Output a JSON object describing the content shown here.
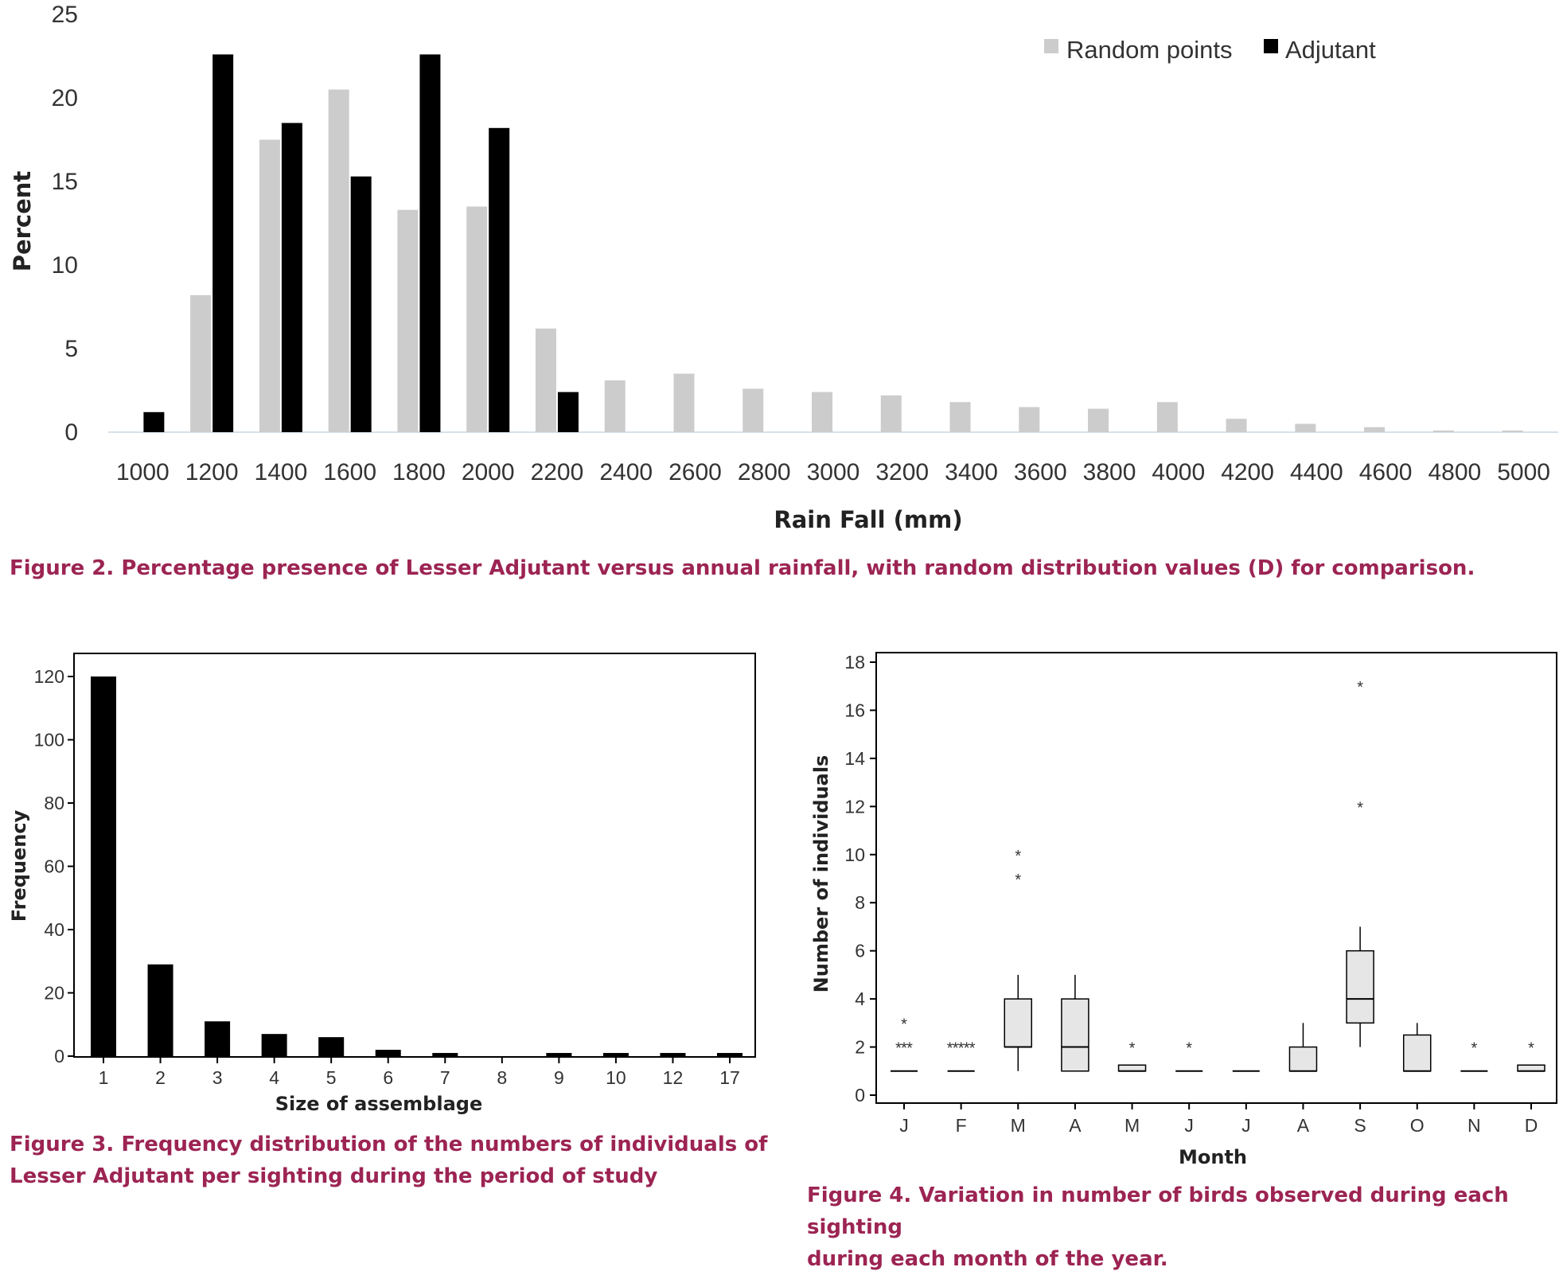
{
  "figures": {
    "fig2": {
      "caption": "Figure 2. Percentage presence of Lesser Adjutant versus annual rainfall, with random distribution values (D) for comparison."
    },
    "fig3": {
      "caption_lines": [
        "Figure 3. Frequency distribution of the numbers of individuals of",
        "Lesser Adjutant per sighting during the period of study"
      ]
    },
    "fig4": {
      "caption_lines": [
        "Figure 4. Variation in number of birds observed during each sighting",
        "during each month of the year."
      ]
    }
  },
  "colors": {
    "random": "#cccccc",
    "adjutant": "#000000",
    "caption": "#9c2453",
    "box_fill": "#e6e6e6"
  },
  "chart_data": [
    {
      "id": "fig2",
      "type": "bar",
      "xlabel": "Rain Fall (mm)",
      "ylabel": "Percent",
      "ylim": [
        0,
        25
      ],
      "yticks": [
        "0",
        "5",
        "10",
        "15",
        "20",
        "25"
      ],
      "legend_position": "top-right",
      "categories": [
        "1000",
        "1200",
        "1400",
        "1600",
        "1800",
        "2000",
        "2200",
        "2400",
        "2600",
        "2800",
        "3000",
        "3200",
        "3400",
        "3600",
        "3800",
        "4000",
        "4200",
        "4400",
        "4600",
        "4800",
        "5000"
      ],
      "series": [
        {
          "name": "Random points",
          "color": "#cccccc",
          "values": [
            0,
            8.2,
            17.5,
            20.5,
            13.3,
            13.5,
            6.2,
            3.1,
            3.5,
            2.6,
            2.4,
            2.2,
            1.8,
            1.5,
            1.4,
            1.8,
            0.8,
            0.5,
            0.3,
            0.1,
            0.1
          ]
        },
        {
          "name": "Adjutant",
          "color": "#000000",
          "values": [
            1.2,
            22.6,
            18.5,
            15.3,
            22.6,
            18.2,
            2.4,
            0,
            0,
            0,
            0,
            0,
            0,
            0,
            0,
            0,
            0,
            0,
            0,
            0,
            0
          ]
        }
      ]
    },
    {
      "id": "fig3",
      "type": "bar",
      "xlabel": "Size of assemblage",
      "ylabel": "Frequency",
      "ylim": [
        0,
        120
      ],
      "yticks": [
        "0",
        "20",
        "40",
        "60",
        "80",
        "100",
        "120"
      ],
      "categories": [
        "1",
        "2",
        "3",
        "4",
        "5",
        "6",
        "7",
        "8",
        "9",
        "10",
        "12",
        "17"
      ],
      "values": [
        120,
        29,
        11,
        7,
        6,
        2,
        1,
        0,
        1,
        1,
        1,
        1
      ]
    },
    {
      "id": "fig4",
      "type": "box",
      "xlabel": "Month",
      "ylabel": "Number of individuals",
      "ylim": [
        0,
        18
      ],
      "yticks": [
        "0",
        "2",
        "4",
        "6",
        "8",
        "10",
        "12",
        "14",
        "16",
        "18"
      ],
      "categories": [
        "J",
        "F",
        "M",
        "A",
        "M",
        "J",
        "J",
        "A",
        "S",
        "O",
        "N",
        "D"
      ],
      "boxes": [
        {
          "min": 1,
          "q1": 1,
          "median": 1,
          "q3": 1,
          "max": 1,
          "outliers": [
            2,
            2,
            2,
            3
          ]
        },
        {
          "min": 1,
          "q1": 1,
          "median": 1,
          "q3": 1,
          "max": 1,
          "outliers": [
            2,
            2,
            2,
            2,
            2
          ]
        },
        {
          "min": 1,
          "q1": 2,
          "median": 2,
          "q3": 4,
          "max": 5,
          "outliers": [
            9,
            10
          ]
        },
        {
          "min": 1,
          "q1": 1,
          "median": 2,
          "q3": 4,
          "max": 5,
          "outliers": []
        },
        {
          "min": 1,
          "q1": 1,
          "median": 1,
          "q3": 1.25,
          "max": 1.25,
          "outliers": [
            2
          ]
        },
        {
          "min": 1,
          "q1": 1,
          "median": 1,
          "q3": 1,
          "max": 1,
          "outliers": [
            2
          ]
        },
        {
          "min": 1,
          "q1": 1,
          "median": 1,
          "q3": 1,
          "max": 1,
          "outliers": []
        },
        {
          "min": 1,
          "q1": 1,
          "median": 1,
          "q3": 2,
          "max": 3,
          "outliers": []
        },
        {
          "min": 2,
          "q1": 3,
          "median": 4,
          "q3": 6,
          "max": 7,
          "outliers": [
            12,
            17
          ]
        },
        {
          "min": 1,
          "q1": 1,
          "median": 1,
          "q3": 2.5,
          "max": 3,
          "outliers": []
        },
        {
          "min": 1,
          "q1": 1,
          "median": 1,
          "q3": 1,
          "max": 1,
          "outliers": [
            2
          ]
        },
        {
          "min": 1,
          "q1": 1,
          "median": 1,
          "q3": 1.25,
          "max": 1.25,
          "outliers": [
            2
          ]
        }
      ]
    }
  ]
}
